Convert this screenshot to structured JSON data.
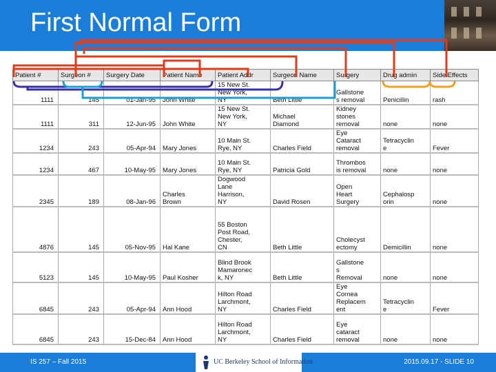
{
  "slide": {
    "title": "First Normal Form",
    "footer_left": "IS 257 – Fall 2015",
    "footer_right": "2015.09.17 - SLIDE 10",
    "logo_text": "UC Berkeley School of Information",
    "colors": {
      "title_bar": "#1a7ed8",
      "connector_red": "#e23b1c",
      "connector_orange": "#f0a020",
      "connector_purple": "#3b2fa8",
      "connector_cyan": "#1aa0d8"
    }
  },
  "table": {
    "headers": [
      "Patient #",
      "Surgeon #",
      "Surgery Date",
      "Patient Name",
      "Patient Addr",
      "Surgeon Name",
      "Surgery",
      "Drug admin",
      "Side Effects"
    ],
    "rows": [
      [
        "1111",
        "145",
        "01-Jan-95",
        "John White",
        "15 New St.\nNew York,\nNY",
        "Beth Little",
        "Gallstone\ns removal",
        "Penicillin",
        "rash"
      ],
      [
        "1111",
        "311",
        "12-Jun-95",
        "John White",
        "15 New St.\nNew York,\nNY",
        "Michael\nDiamond",
        "Kidney\nstones\nremoval",
        "none",
        "none"
      ],
      [
        "1234",
        "243",
        "05-Apr-94",
        "Mary Jones",
        "10 Main St.\nRye, NY",
        "Charles Field",
        "Eye\nCataract\nremoval",
        "Tetracyclin\ne",
        "Fever"
      ],
      [
        "1234",
        "467",
        "10-May-95",
        "Mary Jones",
        "10 Main St.\nRye, NY",
        "Patricia Gold",
        "Thrombos\nis removal",
        "none",
        "none"
      ],
      [
        "2345",
        "189",
        "08-Jan-96",
        "Charles\nBrown",
        "Dogwood\nLane\nHarrison,\nNY",
        "David Rosen",
        "Open\nHeart\nSurgery",
        "Cephalosp\norin",
        "none"
      ],
      [
        "4876",
        "145",
        "05-Nov-95",
        "Hal Kane",
        "55 Boston\nPost Road,\nChester,\nCN",
        "Beth Little",
        "Cholecyst\nectomy",
        "Demicillin",
        "none"
      ],
      [
        "5123",
        "145",
        "10-May-95",
        "Paul Kosher",
        "Blind Brook\nMamaronec\nk, NY",
        "Beth Little",
        "Gallstone\ns\nRemoval",
        "none",
        "none"
      ],
      [
        "6845",
        "243",
        "05-Apr-94",
        "Ann Hood",
        "Hilton Road\nLarchmont,\nNY",
        "Charles Field",
        "Eye\nCornea\nReplacem\nent",
        "Tetracyclin\ne",
        "Fever"
      ],
      [
        "6845",
        "243",
        "15-Dec-84",
        "Ann Hood",
        "Hilton Road\nLarchmont,\nNY",
        "Charles Field",
        "Eye\ncataract\nremoval",
        "none",
        "none"
      ]
    ]
  }
}
